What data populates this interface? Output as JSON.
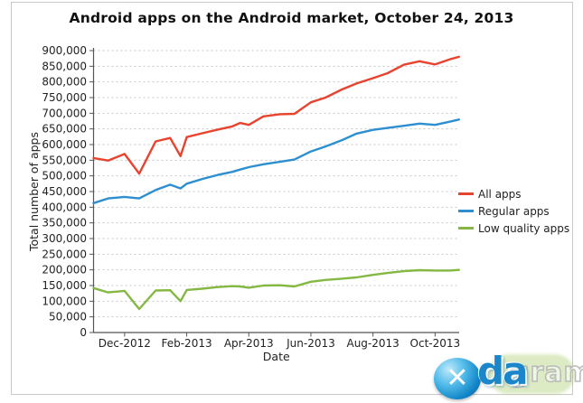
{
  "chart_data": {
    "type": "line",
    "title": "Android apps on the Android market, October 24, 2013",
    "xlabel": "Date",
    "ylabel": "Total number of apps",
    "ylim": [
      0,
      900000
    ],
    "ytick_step": 50000,
    "ytick_labels": [
      "0",
      "50,000",
      "100,000",
      "150,000",
      "200,000",
      "250,000",
      "300,000",
      "350,000",
      "400,000",
      "450,000",
      "500,000",
      "550,000",
      "600,000",
      "650,000",
      "700,000",
      "750,000",
      "800,000",
      "850,000",
      "900,000"
    ],
    "grid": "horizontal-dashed",
    "legend_position": "right-outside",
    "x_unit": "months-since-2012-11-01",
    "x": [
      0,
      0.47,
      1,
      1.47,
      2,
      2.47,
      2.8,
      3,
      3.5,
      4,
      4.47,
      4.72,
      5,
      5.47,
      6,
      6.47,
      7,
      7.47,
      8,
      8.47,
      9,
      9.47,
      10,
      10.5,
      11,
      11.47,
      11.77
    ],
    "x_dates": [
      "2012-11-01",
      "2012-11-15",
      "2012-12-01",
      "2012-12-15",
      "2013-01-01",
      "2013-01-15",
      "2013-01-25",
      "2013-02-01",
      "2013-02-15",
      "2013-03-01",
      "2013-03-15",
      "2013-03-22",
      "2013-04-01",
      "2013-04-15",
      "2013-05-01",
      "2013-05-15",
      "2013-06-01",
      "2013-06-15",
      "2013-07-01",
      "2013-07-15",
      "2013-08-01",
      "2013-08-15",
      "2013-09-01",
      "2013-09-15",
      "2013-10-01",
      "2013-10-15",
      "2013-10-24"
    ],
    "xticks": {
      "positions": [
        1,
        3,
        5,
        7,
        9,
        11
      ],
      "labels": [
        "Dec-2012",
        "Feb-2013",
        "Apr-2013",
        "Jun-2013",
        "Aug-2013",
        "Oct-2013"
      ]
    },
    "series": [
      {
        "name": "All apps",
        "color": "#e8432e",
        "values": [
          557000,
          549000,
          570000,
          507000,
          610000,
          621000,
          563000,
          624000,
          636000,
          648000,
          658000,
          669000,
          663000,
          690000,
          697000,
          698000,
          735000,
          750000,
          776000,
          795000,
          812000,
          828000,
          855000,
          866000,
          856000,
          872000,
          880000
        ]
      },
      {
        "name": "Regular apps",
        "color": "#2d8fd0",
        "values": [
          413000,
          428000,
          433000,
          428000,
          455000,
          472000,
          460000,
          475000,
          490000,
          503000,
          513000,
          520000,
          528000,
          537000,
          545000,
          552000,
          578000,
          594000,
          614000,
          635000,
          647000,
          653000,
          660000,
          667000,
          663000,
          673000,
          680000
        ]
      },
      {
        "name": "Low quality apps",
        "color": "#84b842",
        "values": [
          142000,
          128000,
          133000,
          75000,
          134000,
          135000,
          100000,
          136000,
          140000,
          145000,
          148000,
          147000,
          143000,
          150000,
          151000,
          147000,
          162000,
          168000,
          172000,
          176000,
          184000,
          190000,
          196000,
          199000,
          198000,
          198000,
          200000
        ]
      }
    ],
    "style": {
      "grid_color": "#c6c6c6",
      "axis_color": "#555555",
      "text_color": "#222222"
    }
  },
  "watermark": {
    "letters": "da",
    "faded_text": "gram",
    "globe_glyph": "✕"
  }
}
